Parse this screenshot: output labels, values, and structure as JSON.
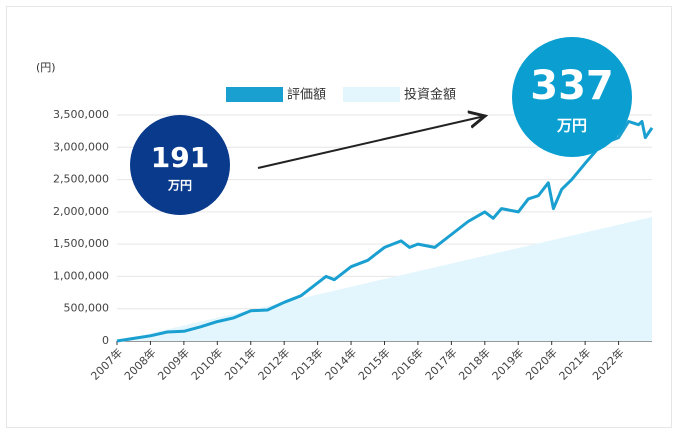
{
  "chart_data": {
    "type": "line-area",
    "y_unit_label": "(円)",
    "annotations": [
      {
        "value": "191",
        "unit": "万円"
      },
      {
        "value": "337",
        "unit": "万円"
      }
    ],
    "x": [
      2007,
      2007.5,
      2008,
      2008.5,
      2009,
      2009.5,
      2010,
      2010.5,
      2011,
      2011.5,
      2012,
      2012.5,
      2013,
      2013.25,
      2013.5,
      2014,
      2014.5,
      2014.75,
      2015,
      2015.5,
      2015.75,
      2016,
      2016.5,
      2017,
      2017.5,
      2018,
      2018.25,
      2018.5,
      2019,
      2019.3,
      2019.6,
      2019.9,
      2020.05,
      2020.3,
      2020.6,
      2021,
      2021.5,
      2022,
      2022.3,
      2022.6,
      2022.7,
      2022.8,
      2023
    ],
    "series": [
      {
        "name": "評価額",
        "color": "#1a9fd1",
        "kind": "line",
        "values": [
          0,
          40000,
          80000,
          140000,
          150000,
          220000,
          300000,
          360000,
          470000,
          480000,
          600000,
          700000,
          900000,
          1000000,
          950000,
          1150000,
          1250000,
          1350000,
          1450000,
          1550000,
          1450000,
          1500000,
          1450000,
          1650000,
          1850000,
          2000000,
          1900000,
          2050000,
          2000000,
          2200000,
          2250000,
          2450000,
          2050000,
          2350000,
          2500000,
          2750000,
          3050000,
          3150000,
          3400000,
          3350000,
          3400000,
          3150000,
          3300000
        ]
      },
      {
        "name": "投資金額",
        "color": "#e4f6fd",
        "kind": "area",
        "values": [
          0,
          60000,
          120000,
          180000,
          240000,
          300000,
          360000,
          420000,
          480000,
          540000,
          600000,
          660000,
          720000,
          750000,
          780000,
          840000,
          900000,
          930000,
          960000,
          1020000,
          1050000,
          1080000,
          1140000,
          1200000,
          1260000,
          1320000,
          1350000,
          1380000,
          1440000,
          1476000,
          1512000,
          1548000,
          1566000,
          1596000,
          1632000,
          1680000,
          1740000,
          1800000,
          1836000,
          1872000,
          1884000,
          1896000,
          1920000
        ]
      }
    ],
    "xlim": [
      2007,
      2023
    ],
    "xticks": [
      {
        "value": 2007,
        "label": "2007年"
      },
      {
        "value": 2008,
        "label": "2008年"
      },
      {
        "value": 2009,
        "label": "2009年"
      },
      {
        "value": 2010,
        "label": "2010年"
      },
      {
        "value": 2011,
        "label": "2011年"
      },
      {
        "value": 2012,
        "label": "2012年"
      },
      {
        "value": 2013,
        "label": "2013年"
      },
      {
        "value": 2014,
        "label": "2014年"
      },
      {
        "value": 2015,
        "label": "2015年"
      },
      {
        "value": 2016,
        "label": "2016年"
      },
      {
        "value": 2017,
        "label": "2017年"
      },
      {
        "value": 2018,
        "label": "2018年"
      },
      {
        "value": 2019,
        "label": "2019年"
      },
      {
        "value": 2020,
        "label": "2020年"
      },
      {
        "value": 2021,
        "label": "2021年"
      },
      {
        "value": 2022,
        "label": "2022年"
      }
    ],
    "ylim": [
      0,
      3500000
    ],
    "yticks": [
      0,
      {
        "value": 500000,
        "label": "500,000"
      },
      {
        "value": 1000000,
        "label": "1,000,000"
      },
      {
        "value": 1500000,
        "label": "1,500,000"
      },
      {
        "value": 2000000,
        "label": "2,000,000"
      },
      {
        "value": 2500000,
        "label": "2,500,000"
      },
      {
        "value": 3000000,
        "label": "3,000,000"
      },
      {
        "value": 3500000,
        "label": "3,500,000"
      }
    ],
    "grid": true
  }
}
